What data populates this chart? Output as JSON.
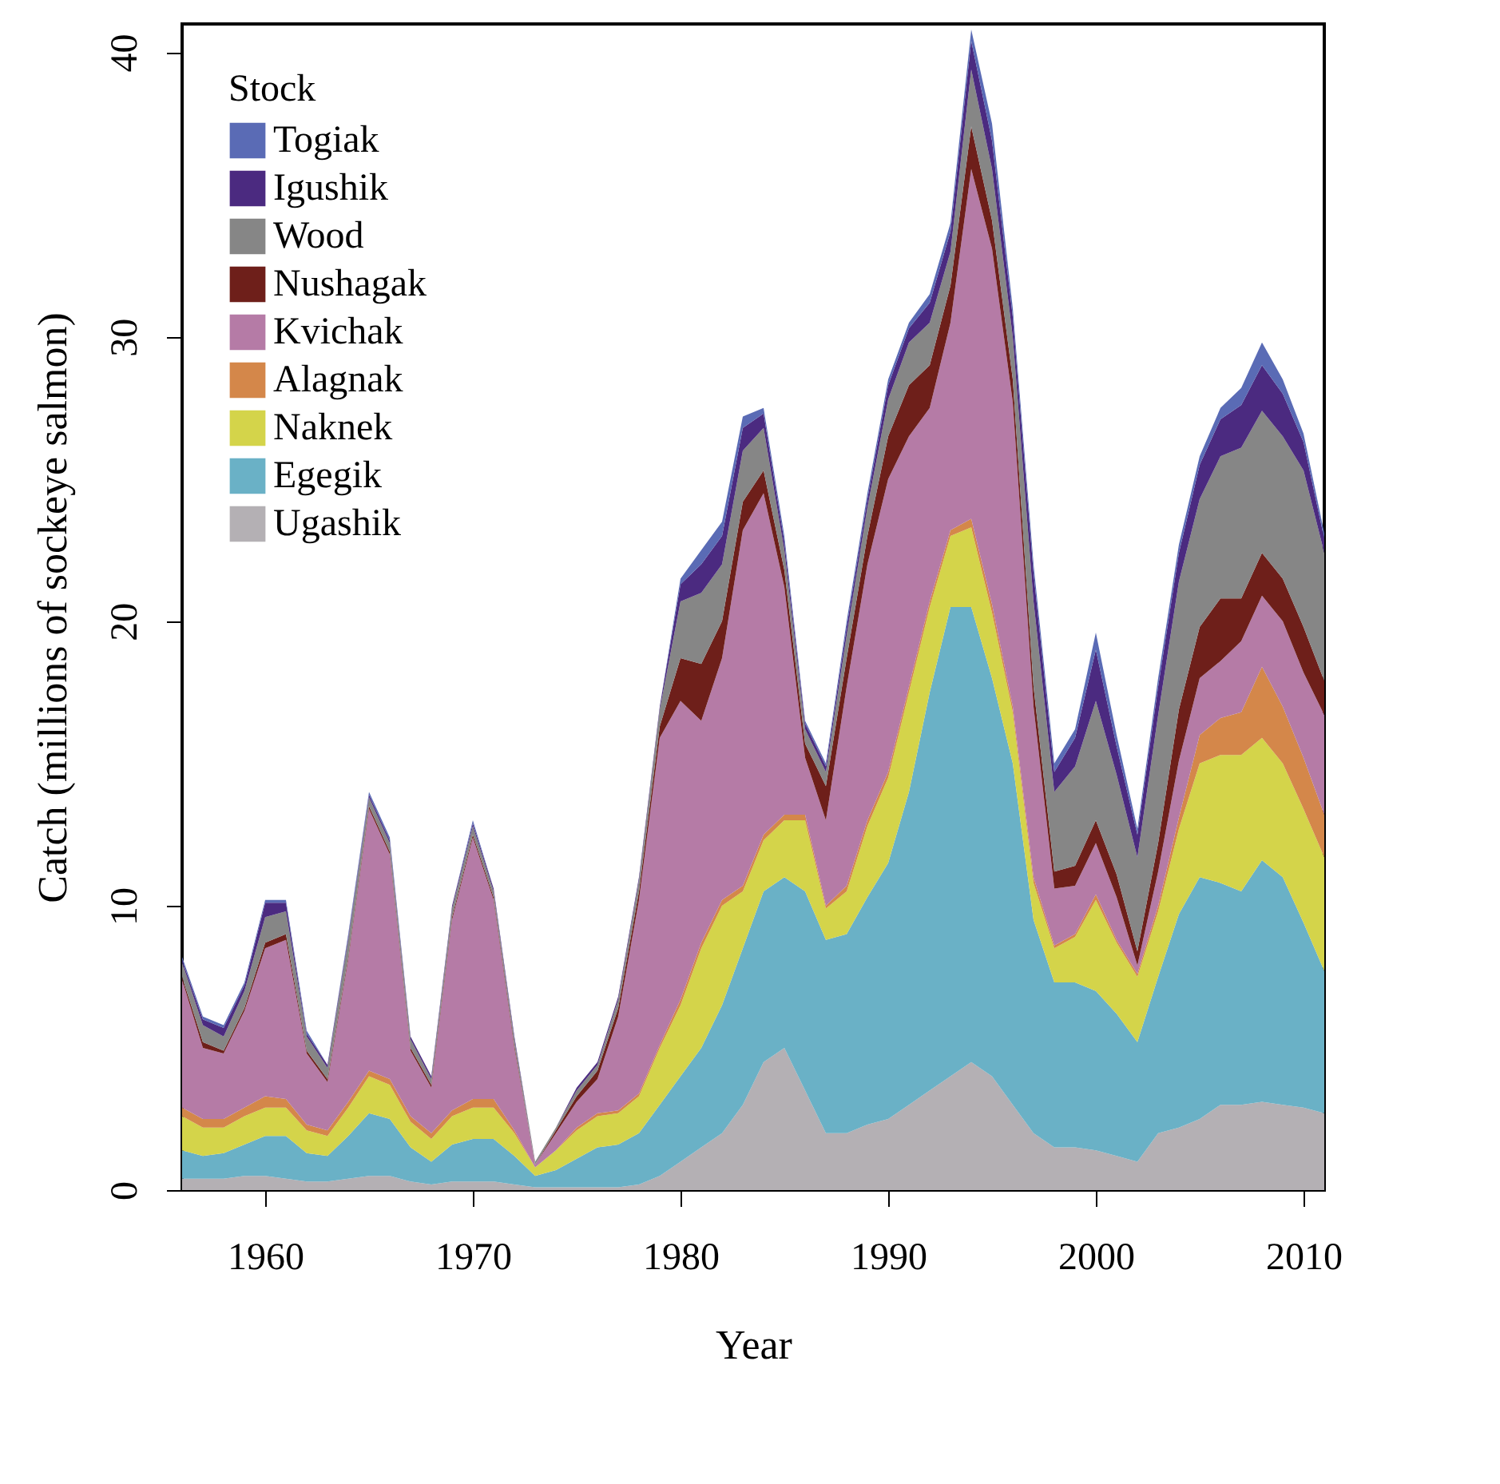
{
  "chart_data": {
    "type": "area",
    "stacked": true,
    "xlabel": "Year",
    "ylabel": "Catch (millions of sockeye salmon)",
    "legend_title": "Stock",
    "legend": "top left",
    "grid": false,
    "xlim": [
      1956,
      2011
    ],
    "xticks": [
      1960,
      1970,
      1980,
      1990,
      2000,
      2010
    ],
    "ylim": [
      0,
      41
    ],
    "yticks": [
      0,
      10,
      20,
      30,
      40
    ],
    "x": [
      1956,
      1957,
      1958,
      1959,
      1960,
      1961,
      1962,
      1963,
      1964,
      1965,
      1966,
      1967,
      1968,
      1969,
      1970,
      1971,
      1972,
      1973,
      1974,
      1975,
      1976,
      1977,
      1978,
      1979,
      1980,
      1981,
      1982,
      1983,
      1984,
      1985,
      1986,
      1987,
      1988,
      1989,
      1990,
      1991,
      1992,
      1993,
      1994,
      1995,
      1996,
      1997,
      1998,
      1999,
      2000,
      2001,
      2002,
      2003,
      2004,
      2005,
      2006,
      2007,
      2008,
      2009,
      2010,
      2011
    ],
    "series": [
      {
        "name": "Ugashik",
        "color": "#b4b0b4",
        "values": [
          0.4,
          0.4,
          0.4,
          0.5,
          0.5,
          0.4,
          0.3,
          0.3,
          0.4,
          0.5,
          0.5,
          0.3,
          0.2,
          0.3,
          0.3,
          0.3,
          0.2,
          0.1,
          0.1,
          0.1,
          0.1,
          0.1,
          0.2,
          0.5,
          1.0,
          1.5,
          2.0,
          3.0,
          4.5,
          5.0,
          3.5,
          2.0,
          2.0,
          2.3,
          2.5,
          3.0,
          3.5,
          4.0,
          4.5,
          4.0,
          3.0,
          2.0,
          1.5,
          1.5,
          1.4,
          1.2,
          1.0,
          2.0,
          2.2,
          2.5,
          3.0,
          3.0,
          3.1,
          3.0,
          2.9,
          2.7
        ]
      },
      {
        "name": "Egegik",
        "color": "#6ab1c6",
        "values": [
          1.0,
          0.8,
          0.9,
          1.1,
          1.4,
          1.5,
          1.0,
          0.9,
          1.5,
          2.2,
          2.0,
          1.2,
          0.8,
          1.3,
          1.5,
          1.5,
          1.0,
          0.4,
          0.6,
          1.0,
          1.4,
          1.5,
          1.8,
          2.5,
          3.0,
          3.5,
          4.5,
          5.5,
          6.0,
          6.0,
          7.0,
          6.8,
          7.0,
          8.0,
          9.0,
          11.0,
          14.0,
          16.5,
          16.0,
          14.0,
          12.0,
          7.5,
          5.8,
          5.8,
          5.6,
          5.0,
          4.2,
          5.5,
          7.5,
          8.5,
          7.8,
          7.5,
          8.5,
          8.0,
          6.5,
          5.0
        ]
      },
      {
        "name": "Naknek",
        "color": "#d4d44a",
        "values": [
          1.2,
          1.0,
          0.9,
          1.0,
          1.0,
          1.0,
          0.8,
          0.7,
          1.0,
          1.3,
          1.2,
          0.9,
          0.8,
          1.0,
          1.1,
          1.1,
          0.8,
          0.3,
          0.7,
          1.0,
          1.1,
          1.1,
          1.3,
          2.0,
          2.5,
          3.5,
          3.5,
          2.0,
          1.8,
          2.0,
          2.5,
          1.1,
          1.5,
          2.5,
          3.0,
          3.5,
          3.0,
          2.5,
          2.8,
          2.3,
          1.8,
          1.3,
          1.2,
          1.6,
          3.2,
          2.5,
          2.3,
          2.3,
          3.0,
          4.0,
          4.5,
          4.8,
          4.3,
          4.0,
          4.0,
          4.0
        ]
      },
      {
        "name": "Alagnak",
        "color": "#d4874a",
        "values": [
          0.3,
          0.3,
          0.3,
          0.3,
          0.4,
          0.3,
          0.2,
          0.2,
          0.2,
          0.2,
          0.2,
          0.2,
          0.2,
          0.2,
          0.3,
          0.3,
          0.1,
          0.0,
          0.0,
          0.1,
          0.1,
          0.1,
          0.1,
          0.1,
          0.2,
          0.2,
          0.2,
          0.2,
          0.2,
          0.2,
          0.2,
          0.1,
          0.2,
          0.2,
          0.2,
          0.2,
          0.2,
          0.2,
          0.3,
          0.3,
          0.2,
          0.2,
          0.1,
          0.1,
          0.2,
          0.1,
          0.1,
          0.2,
          0.4,
          1.0,
          1.3,
          1.5,
          2.5,
          2.0,
          1.8,
          1.5
        ]
      },
      {
        "name": "Kvichak",
        "color": "#b57ba6",
        "values": [
          4.5,
          2.5,
          2.3,
          3.4,
          5.2,
          5.6,
          2.5,
          1.7,
          5.0,
          9.2,
          7.9,
          2.3,
          1.6,
          6.7,
          9.2,
          7.0,
          2.9,
          0.1,
          0.6,
          0.9,
          1.2,
          3.3,
          6.8,
          10.8,
          10.5,
          7.8,
          8.5,
          12.5,
          12.0,
          8.0,
          2.0,
          3.0,
          7.0,
          9.0,
          10.3,
          8.8,
          6.8,
          7.3,
          12.3,
          12.5,
          10.7,
          6.0,
          2.0,
          1.7,
          1.8,
          1.5,
          0.3,
          1.2,
          2.0,
          2.0,
          2.0,
          2.5,
          2.5,
          3.0,
          3.0,
          3.5
        ]
      },
      {
        "name": "Nushagak",
        "color": "#6e1f1a",
        "values": [
          0.1,
          0.2,
          0.1,
          0.1,
          0.2,
          0.2,
          0.1,
          0.1,
          0.1,
          0.1,
          0.1,
          0.1,
          0.1,
          0.1,
          0.1,
          0.1,
          0.1,
          0.0,
          0.1,
          0.2,
          0.3,
          0.3,
          0.3,
          0.4,
          1.5,
          2.0,
          1.3,
          1.0,
          0.8,
          0.6,
          0.5,
          1.2,
          1.0,
          1.0,
          1.5,
          1.8,
          1.5,
          1.3,
          1.5,
          1.0,
          0.8,
          0.7,
          0.6,
          0.7,
          0.8,
          0.8,
          0.5,
          1.0,
          1.8,
          1.8,
          2.2,
          1.5,
          1.5,
          1.5,
          1.6,
          1.2
        ]
      },
      {
        "name": "Wood",
        "color": "#868686",
        "values": [
          0.5,
          0.6,
          0.5,
          0.6,
          0.9,
          0.8,
          0.5,
          0.4,
          0.6,
          0.3,
          0.3,
          0.3,
          0.2,
          0.3,
          0.3,
          0.2,
          0.2,
          0.1,
          0.1,
          0.2,
          0.2,
          0.3,
          0.4,
          0.6,
          2.0,
          2.5,
          2.0,
          1.8,
          1.5,
          0.7,
          0.5,
          0.5,
          0.8,
          1.0,
          1.3,
          1.5,
          1.5,
          1.2,
          2.0,
          1.8,
          1.5,
          3.0,
          2.8,
          3.5,
          4.2,
          3.5,
          3.3,
          4.5,
          4.5,
          4.5,
          5.0,
          5.3,
          5.0,
          5.0,
          5.5,
          4.5
        ]
      },
      {
        "name": "Igushik",
        "color": "#4b2a80",
        "values": [
          0.1,
          0.2,
          0.3,
          0.2,
          0.5,
          0.3,
          0.1,
          0.1,
          0.1,
          0.1,
          0.1,
          0.1,
          0.1,
          0.1,
          0.1,
          0.1,
          0.1,
          0.0,
          0.0,
          0.1,
          0.1,
          0.1,
          0.1,
          0.1,
          0.6,
          1.0,
          1.0,
          0.8,
          0.5,
          0.3,
          0.2,
          0.2,
          0.3,
          0.3,
          0.5,
          0.5,
          0.7,
          0.7,
          1.0,
          1.0,
          0.7,
          1.0,
          0.7,
          1.0,
          1.8,
          1.0,
          0.8,
          1.0,
          1.0,
          1.2,
          1.3,
          1.5,
          1.6,
          1.5,
          1.0,
          0.5
        ]
      },
      {
        "name": "Togiak",
        "color": "#5a6bb5",
        "values": [
          0.1,
          0.1,
          0.1,
          0.1,
          0.1,
          0.1,
          0.1,
          0.0,
          0.1,
          0.1,
          0.1,
          0.0,
          0.0,
          0.0,
          0.1,
          0.0,
          0.0,
          0.0,
          0.0,
          0.0,
          0.0,
          0.0,
          0.0,
          0.0,
          0.2,
          0.5,
          0.5,
          0.4,
          0.2,
          0.2,
          0.1,
          0.1,
          0.2,
          0.2,
          0.2,
          0.2,
          0.3,
          0.3,
          0.4,
          0.6,
          0.3,
          0.3,
          0.3,
          0.3,
          0.6,
          0.4,
          0.2,
          0.3,
          0.3,
          0.3,
          0.4,
          0.6,
          0.8,
          0.5,
          0.3,
          0.2
        ]
      }
    ]
  }
}
